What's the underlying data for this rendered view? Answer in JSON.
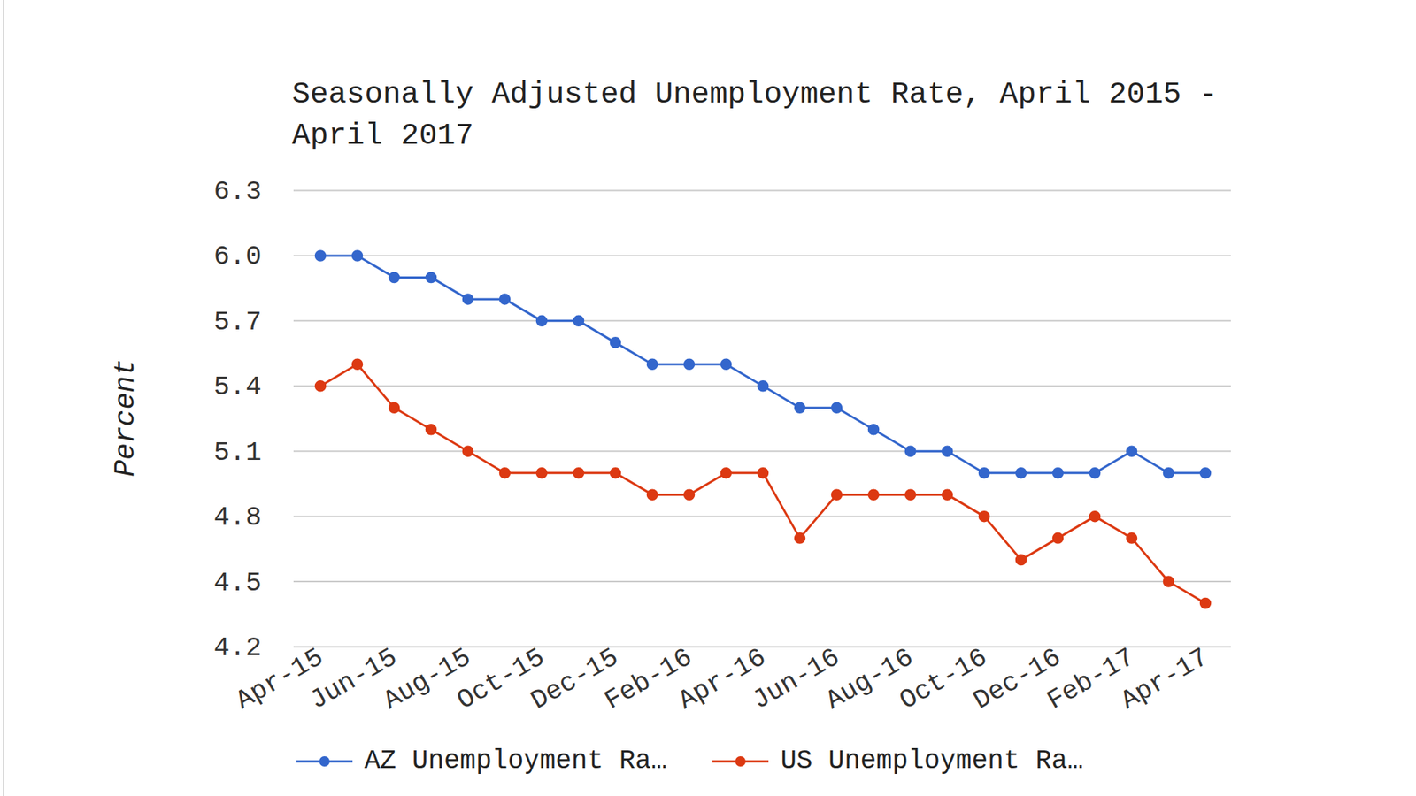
{
  "chart_data": {
    "type": "line",
    "title": "Seasonally Adjusted Unemployment Rate, April 2015 - April 2017",
    "y_label": "Percent",
    "categories": [
      "Apr-15",
      null,
      "Jun-15",
      null,
      "Aug-15",
      null,
      "Oct-15",
      null,
      "Dec-15",
      null,
      "Feb-16",
      null,
      "Apr-16",
      null,
      "Jun-16",
      null,
      "Aug-16",
      null,
      "Oct-16",
      null,
      "Dec-16",
      null,
      "Feb-17",
      null,
      "Apr-17"
    ],
    "series": [
      {
        "name": "AZ Unemployment Ra…",
        "color": "#3366cc",
        "values": [
          6.0,
          6.0,
          5.9,
          5.9,
          5.8,
          5.8,
          5.7,
          5.7,
          5.6,
          5.5,
          5.5,
          5.5,
          5.4,
          5.3,
          5.3,
          5.2,
          5.1,
          5.1,
          5.0,
          5.0,
          5.0,
          5.0,
          5.1,
          5.0,
          5.0
        ]
      },
      {
        "name": "US Unemployment Ra…",
        "color": "#dc3912",
        "values": [
          5.4,
          5.5,
          5.3,
          5.2,
          5.1,
          5.0,
          5.0,
          5.0,
          5.0,
          4.9,
          4.9,
          5.0,
          5.0,
          4.7,
          4.9,
          4.9,
          4.9,
          4.9,
          4.8,
          4.6,
          4.7,
          4.8,
          4.7,
          4.5,
          4.4
        ]
      }
    ],
    "ylim": [
      4.2,
      6.3
    ],
    "yticks": [
      4.2,
      4.5,
      4.8,
      5.1,
      5.4,
      5.7,
      {
        "value": 6.0,
        "label": "6.0"
      },
      6.3
    ],
    "grid": true,
    "legend": "bottom",
    "marker": "circle",
    "line_style": "solid"
  }
}
